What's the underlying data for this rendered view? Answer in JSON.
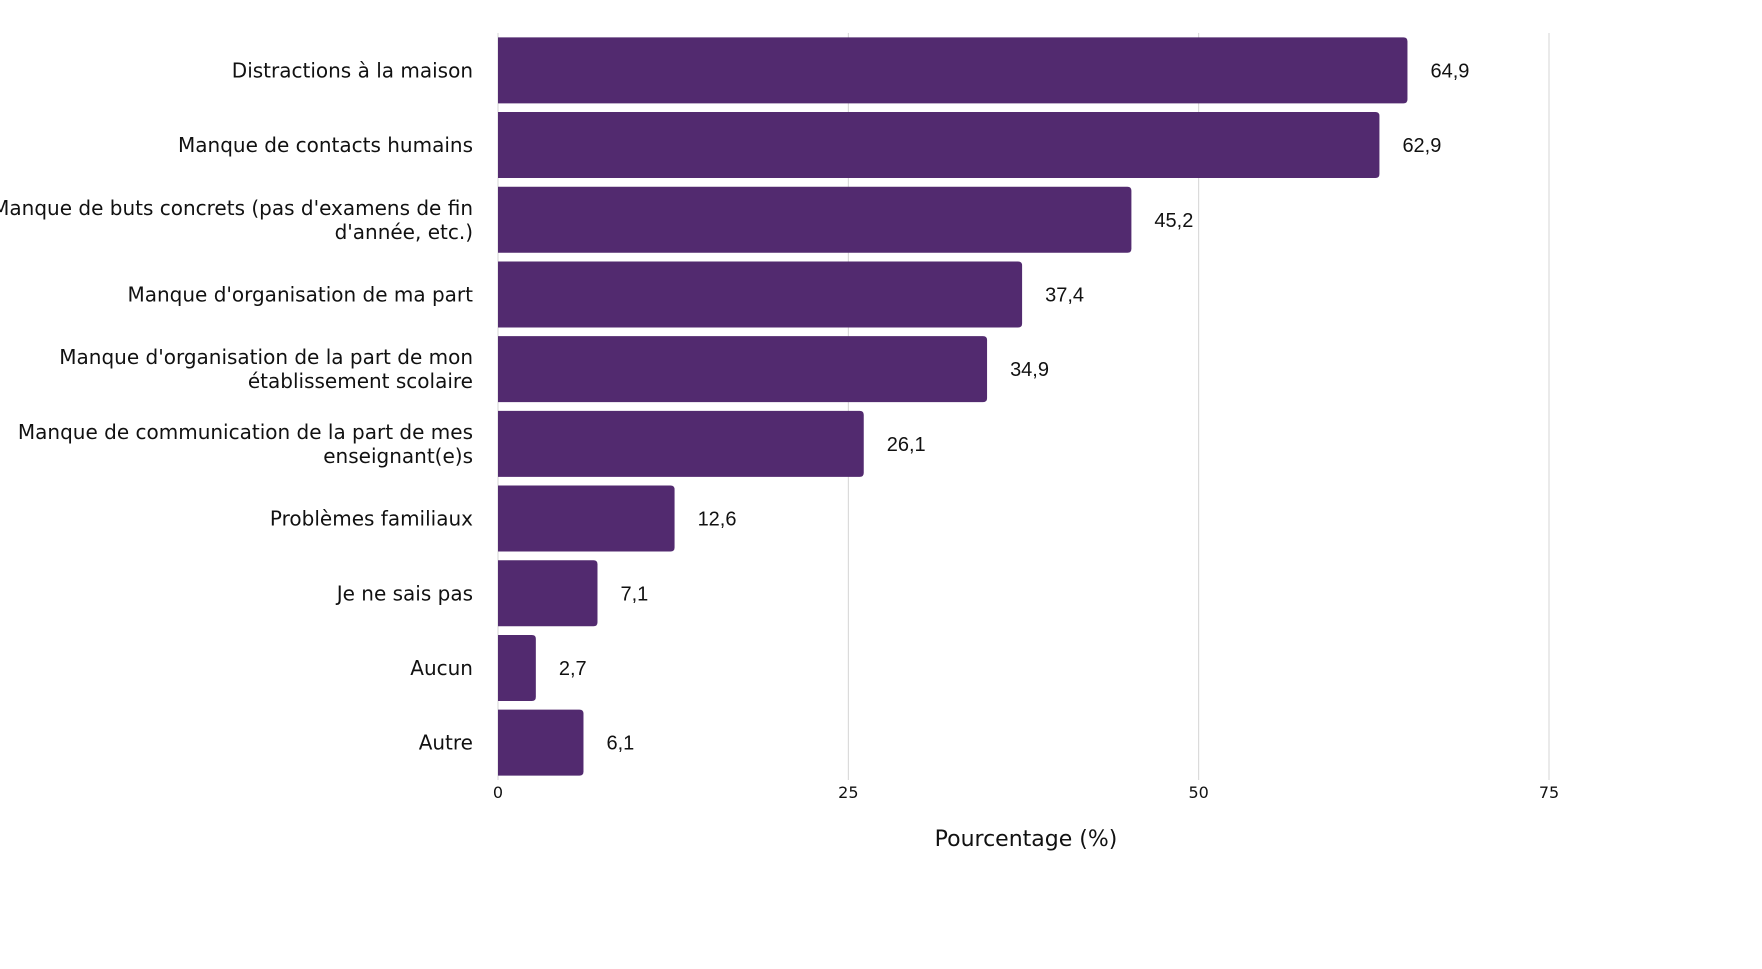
{
  "chart_data": {
    "type": "bar",
    "orientation": "horizontal",
    "categories": [
      [
        "Distractions à la maison"
      ],
      [
        "Manque de contacts humains"
      ],
      [
        "Manque de buts concrets (pas d'examens de fin",
        "d'année, etc.)"
      ],
      [
        "Manque d'organisation de ma part"
      ],
      [
        "Manque d'organisation de la part de mon",
        "établissement scolaire"
      ],
      [
        "Manque de communication de la part de mes",
        "enseignant(e)s"
      ],
      [
        "Problèmes familiaux"
      ],
      [
        "Je ne sais pas"
      ],
      [
        "Aucun"
      ],
      [
        "Autre"
      ]
    ],
    "values": [
      64.9,
      62.9,
      45.2,
      37.4,
      34.9,
      26.1,
      12.6,
      7.1,
      2.7,
      6.1
    ],
    "value_labels": [
      "64,9",
      "62,9",
      "45,2",
      "37,4",
      "34,9",
      "26,1",
      "12,6",
      "7,1",
      "2,7",
      "6,1"
    ],
    "xlabel": "Pourcentage (%)",
    "ylabel": "",
    "xlim": [
      0,
      75
    ],
    "xticks": [
      0,
      25,
      50,
      75
    ],
    "xtick_labels": [
      "0",
      "25",
      "50",
      "75"
    ],
    "grid": "vertical",
    "bar_color": "#522a6f"
  }
}
